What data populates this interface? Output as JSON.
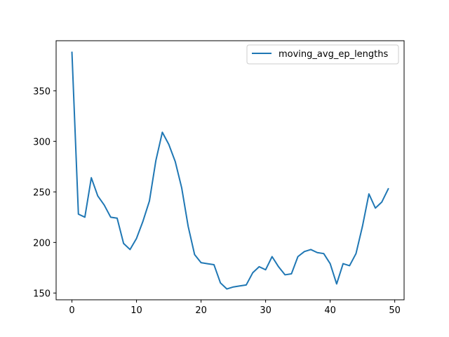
{
  "chart_data": {
    "type": "line",
    "title": "",
    "xlabel": "",
    "ylabel": "",
    "xlim": [
      -2.45,
      51.45
    ],
    "ylim": [
      143.3,
      399.5
    ],
    "xticks": [
      0,
      10,
      20,
      30,
      40,
      50
    ],
    "yticks": [
      150,
      200,
      250,
      300,
      350
    ],
    "grid": false,
    "legend_position": "top-right",
    "series": [
      {
        "name": "moving_avg_ep_lengths",
        "color": "#1f77b4",
        "x": [
          0,
          1,
          2,
          3,
          4,
          5,
          6,
          7,
          8,
          9,
          10,
          11,
          12,
          13,
          14,
          15,
          16,
          17,
          18,
          19,
          20,
          21,
          22,
          23,
          24,
          25,
          26,
          27,
          28,
          29,
          30,
          31,
          32,
          33,
          34,
          35,
          36,
          37,
          38,
          39,
          40,
          41,
          42,
          43,
          44,
          45,
          46,
          47,
          48,
          49
        ],
        "y": [
          388,
          228,
          225,
          264,
          246,
          237,
          225,
          224,
          199,
          193,
          204,
          221,
          241,
          281,
          309,
          297,
          280,
          254,
          216,
          188,
          180,
          179,
          178,
          160,
          154,
          156,
          157,
          158,
          170,
          176,
          173,
          186,
          176,
          168,
          169,
          186,
          191,
          193,
          190,
          189,
          179,
          159,
          179,
          177,
          189,
          216,
          248,
          234,
          240,
          253
        ]
      }
    ]
  }
}
